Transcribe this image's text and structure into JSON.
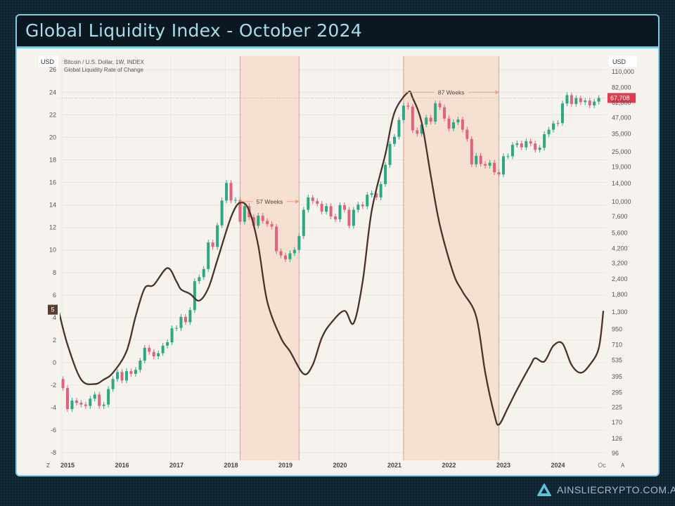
{
  "header": {
    "title": "Global Liquidity Index - October 2024"
  },
  "footer": {
    "brand": "AINSLIECRYPTO.COM.AU",
    "logo_icon": "ainslie-a-logo-icon"
  },
  "chart_data": {
    "type": "line",
    "title": "",
    "legend": [
      "Bitcoin / U.S. Dollar, 1W, INDEX",
      "Global Liquidity Rate of Change"
    ],
    "left_axis": {
      "unit": "",
      "ylim": [
        -8,
        26
      ],
      "ticks": [
        26,
        24,
        22,
        20,
        18,
        16,
        14,
        12,
        10,
        8,
        6,
        4,
        2,
        0,
        -2,
        -4,
        -6,
        -8
      ]
    },
    "right_axis": {
      "unit_label": "USD",
      "scale": "log",
      "ylim": [
        96,
        110000
      ],
      "ticks": [
        "110,000",
        "82,000",
        "62,000",
        "47,000",
        "35,000",
        "25,000",
        "19,000",
        "14,000",
        "10,000",
        "7,600",
        "5,600",
        "4,200",
        "3,200",
        "2,400",
        "1,800",
        "1,300",
        "950",
        "710",
        "535",
        "395",
        "295",
        "225",
        "170",
        "126",
        "96"
      ]
    },
    "left_unit_label": "USD",
    "x_ticks": [
      "2015",
      "2016",
      "2017",
      "2018",
      "2019",
      "2020",
      "2021",
      "2022",
      "2023",
      "2024",
      "Oc"
    ],
    "x_corner_left": "Z",
    "x_corner_right": "A",
    "grid": true,
    "colors": {
      "liquidity": "#4a3228",
      "up": "#2ea884",
      "down": "#e0627c",
      "shade": "#f4d9c8",
      "shade_edge": "#e6a184",
      "price_label": "#e23b4e"
    },
    "last_price_label": "67,708",
    "last_liquidity_label": "5",
    "regions": [
      {
        "start": "2018-03",
        "end": "2019-04",
        "label": "57 Weeks",
        "label_value": 14.3
      },
      {
        "start": "2021-03",
        "end": "2022-12",
        "label": "87 Weeks",
        "label_value": 24
      }
    ],
    "series": [
      {
        "name": "Global Liquidity Rate of Change",
        "axis": "left",
        "points": [
          [
            "2014-11",
            4.7
          ],
          [
            "2015-01",
            1.6
          ],
          [
            "2015-04",
            -1.5
          ],
          [
            "2015-07",
            -1.9
          ],
          [
            "2015-09",
            -1.5
          ],
          [
            "2015-11",
            -0.9
          ],
          [
            "2016-02",
            1.0
          ],
          [
            "2016-04",
            4.1
          ],
          [
            "2016-06",
            6.6
          ],
          [
            "2016-08",
            6.9
          ],
          [
            "2016-11",
            8.4
          ],
          [
            "2017-01",
            7.2
          ],
          [
            "2017-02",
            6.5
          ],
          [
            "2017-04",
            6.1
          ],
          [
            "2017-06",
            5.5
          ],
          [
            "2017-08",
            6.6
          ],
          [
            "2017-10",
            9.1
          ],
          [
            "2018-01",
            12.9
          ],
          [
            "2018-03",
            14.2
          ],
          [
            "2018-05",
            13.5
          ],
          [
            "2018-07",
            10.4
          ],
          [
            "2018-09",
            5.4
          ],
          [
            "2018-12",
            2.2
          ],
          [
            "2019-02",
            1.0
          ],
          [
            "2019-05",
            -1.0
          ],
          [
            "2019-07",
            -0.2
          ],
          [
            "2019-09",
            2.2
          ],
          [
            "2019-11",
            3.5
          ],
          [
            "2020-02",
            4.6
          ],
          [
            "2020-04",
            3.5
          ],
          [
            "2020-06",
            7.2
          ],
          [
            "2020-08",
            13.5
          ],
          [
            "2020-11",
            18.5
          ],
          [
            "2021-01",
            22.2
          ],
          [
            "2021-04",
            24.0
          ],
          [
            "2021-05",
            23.5
          ],
          [
            "2021-07",
            21.3
          ],
          [
            "2021-09",
            16.6
          ],
          [
            "2021-11",
            12.2
          ],
          [
            "2022-02",
            7.9
          ],
          [
            "2022-04",
            6.3
          ],
          [
            "2022-07",
            4.1
          ],
          [
            "2022-09",
            -0.9
          ],
          [
            "2022-11",
            -4.6
          ],
          [
            "2022-12",
            -5.5
          ],
          [
            "2023-02",
            -4.0
          ],
          [
            "2023-04",
            -2.4
          ],
          [
            "2023-07",
            -0.2
          ],
          [
            "2023-08",
            0.4
          ],
          [
            "2023-10",
            0.1
          ],
          [
            "2023-12",
            1.5
          ],
          [
            "2024-02",
            1.7
          ],
          [
            "2024-04",
            -0.2
          ],
          [
            "2024-06",
            -0.9
          ],
          [
            "2024-08",
            -0.2
          ],
          [
            "2024-10",
            1.3
          ],
          [
            "2024-11",
            4.6
          ]
        ]
      },
      {
        "name": "Bitcoin / U.S. Dollar, 1W, INDEX",
        "axis": "right",
        "points": [
          [
            "2014-11",
            378
          ],
          [
            "2014-12",
            320
          ],
          [
            "2015-01",
            217
          ],
          [
            "2015-02",
            254
          ],
          [
            "2015-03",
            244
          ],
          [
            "2015-04",
            236
          ],
          [
            "2015-05",
            230
          ],
          [
            "2015-06",
            263
          ],
          [
            "2015-07",
            284
          ],
          [
            "2015-08",
            230
          ],
          [
            "2015-09",
            236
          ],
          [
            "2015-10",
            314
          ],
          [
            "2015-11",
            378
          ],
          [
            "2015-12",
            430
          ],
          [
            "2016-01",
            368
          ],
          [
            "2016-02",
            437
          ],
          [
            "2016-03",
            416
          ],
          [
            "2016-04",
            448
          ],
          [
            "2016-05",
            531
          ],
          [
            "2016-06",
            673
          ],
          [
            "2016-07",
            624
          ],
          [
            "2016-08",
            575
          ],
          [
            "2016-09",
            609
          ],
          [
            "2016-10",
            700
          ],
          [
            "2016-11",
            745
          ],
          [
            "2016-12",
            964
          ],
          [
            "2017-01",
            970
          ],
          [
            "2017-02",
            1190
          ],
          [
            "2017-03",
            1080
          ],
          [
            "2017-04",
            1350
          ],
          [
            "2017-05",
            2300
          ],
          [
            "2017-06",
            2480
          ],
          [
            "2017-07",
            2880
          ],
          [
            "2017-08",
            4700
          ],
          [
            "2017-09",
            4340
          ],
          [
            "2017-10",
            6450
          ],
          [
            "2017-11",
            10200
          ],
          [
            "2017-12",
            14100
          ],
          [
            "2018-01",
            10200
          ],
          [
            "2018-02",
            10300
          ],
          [
            "2018-03",
            6900
          ],
          [
            "2018-04",
            9200
          ],
          [
            "2018-05",
            7500
          ],
          [
            "2018-06",
            6400
          ],
          [
            "2018-07",
            7700
          ],
          [
            "2018-08",
            7000
          ],
          [
            "2018-09",
            6600
          ],
          [
            "2018-10",
            6300
          ],
          [
            "2018-11",
            4000
          ],
          [
            "2018-12",
            3700
          ],
          [
            "2019-01",
            3450
          ],
          [
            "2019-02",
            3850
          ],
          [
            "2019-03",
            4100
          ],
          [
            "2019-04",
            5300
          ],
          [
            "2019-05",
            8600
          ],
          [
            "2019-06",
            10800
          ],
          [
            "2019-07",
            10100
          ],
          [
            "2019-08",
            9600
          ],
          [
            "2019-09",
            8300
          ],
          [
            "2019-10",
            9200
          ],
          [
            "2019-11",
            7600
          ],
          [
            "2019-12",
            7200
          ],
          [
            "2020-01",
            9350
          ],
          [
            "2020-02",
            8600
          ],
          [
            "2020-03",
            6400
          ],
          [
            "2020-04",
            8600
          ],
          [
            "2020-05",
            9450
          ],
          [
            "2020-06",
            9150
          ],
          [
            "2020-07",
            11350
          ],
          [
            "2020-08",
            11650
          ],
          [
            "2020-09",
            10800
          ],
          [
            "2020-10",
            13800
          ],
          [
            "2020-11",
            19700
          ],
          [
            "2020-12",
            29000
          ],
          [
            "2021-01",
            33100
          ],
          [
            "2021-02",
            45100
          ],
          [
            "2021-03",
            58800
          ],
          [
            "2021-04",
            57700
          ],
          [
            "2021-05",
            37300
          ],
          [
            "2021-06",
            35000
          ],
          [
            "2021-07",
            41500
          ],
          [
            "2021-08",
            47100
          ],
          [
            "2021-09",
            43800
          ],
          [
            "2021-10",
            61300
          ],
          [
            "2021-11",
            57000
          ],
          [
            "2021-12",
            46300
          ],
          [
            "2022-01",
            38500
          ],
          [
            "2022-02",
            43200
          ],
          [
            "2022-03",
            45500
          ],
          [
            "2022-04",
            37700
          ],
          [
            "2022-05",
            31800
          ],
          [
            "2022-06",
            19900
          ],
          [
            "2022-07",
            23300
          ],
          [
            "2022-08",
            20000
          ],
          [
            "2022-09",
            19400
          ],
          [
            "2022-10",
            20500
          ],
          [
            "2022-11",
            17200
          ],
          [
            "2022-12",
            16500
          ],
          [
            "2023-01",
            23100
          ],
          [
            "2023-02",
            23100
          ],
          [
            "2023-03",
            28500
          ],
          [
            "2023-04",
            29300
          ],
          [
            "2023-05",
            27200
          ],
          [
            "2023-06",
            30500
          ],
          [
            "2023-07",
            29200
          ],
          [
            "2023-08",
            26000
          ],
          [
            "2023-09",
            27000
          ],
          [
            "2023-10",
            34700
          ],
          [
            "2023-11",
            37700
          ],
          [
            "2023-12",
            42300
          ],
          [
            "2024-01",
            42600
          ],
          [
            "2024-02",
            61200
          ],
          [
            "2024-03",
            71300
          ],
          [
            "2024-04",
            60600
          ],
          [
            "2024-05",
            67500
          ],
          [
            "2024-06",
            62700
          ],
          [
            "2024-07",
            64600
          ],
          [
            "2024-08",
            59000
          ],
          [
            "2024-09",
            63300
          ],
          [
            "2024-10",
            67708
          ]
        ]
      }
    ]
  }
}
